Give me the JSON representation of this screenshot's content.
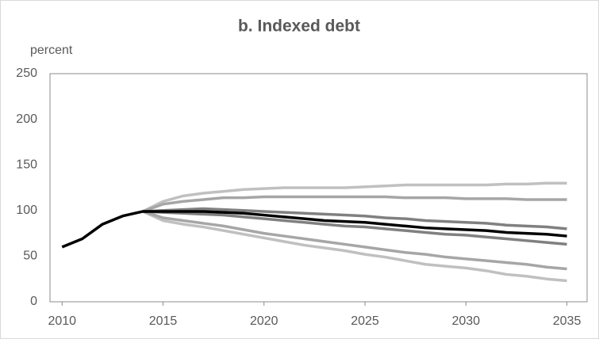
{
  "chart_data": {
    "type": "line",
    "title": "b. Indexed debt",
    "y_label": "percent",
    "x": [
      2010,
      2011,
      2012,
      2013,
      2014,
      2015,
      2016,
      2017,
      2018,
      2019,
      2020,
      2021,
      2022,
      2023,
      2024,
      2025,
      2026,
      2027,
      2028,
      2029,
      2030,
      2031,
      2032,
      2033,
      2034,
      2035
    ],
    "xlim": [
      2009.4,
      2036.0
    ],
    "xticks": [
      2010,
      2015,
      2020,
      2025,
      2030,
      2035
    ],
    "ylim": [
      0,
      250
    ],
    "yticks": [
      0,
      50,
      100,
      150,
      200,
      250
    ],
    "grid": false,
    "series": [
      {
        "color": "#c0c0c0",
        "values": [
          null,
          null,
          null,
          null,
          99,
          110,
          116,
          119,
          121,
          123,
          124,
          125,
          125,
          125,
          125,
          126,
          127,
          128,
          128,
          128,
          128,
          128,
          129,
          129,
          130,
          130
        ]
      },
      {
        "color": "#c0c0c0",
        "values": [
          null,
          null,
          null,
          null,
          99,
          89,
          85,
          82,
          78,
          74,
          70,
          66,
          62,
          59,
          56,
          52,
          49,
          45,
          41,
          39,
          37,
          34,
          30,
          28,
          25,
          23
        ]
      },
      {
        "color": "#a6a6a6",
        "values": [
          null,
          null,
          null,
          null,
          99,
          107,
          110,
          112,
          114,
          114,
          115,
          115,
          115,
          115,
          115,
          115,
          115,
          114,
          114,
          114,
          113,
          113,
          113,
          112,
          112,
          112
        ]
      },
      {
        "color": "#a6a6a6",
        "values": [
          null,
          null,
          null,
          null,
          99,
          92,
          89,
          86,
          83,
          79,
          75,
          72,
          69,
          66,
          63,
          60,
          57,
          54,
          52,
          49,
          47,
          45,
          43,
          41,
          38,
          36
        ]
      },
      {
        "color": "#808080",
        "values": [
          null,
          null,
          null,
          null,
          99,
          100,
          101,
          102,
          101,
          100,
          99,
          98,
          97,
          96,
          95,
          94,
          92,
          91,
          89,
          88,
          87,
          86,
          84,
          83,
          82,
          80
        ]
      },
      {
        "color": "#808080",
        "values": [
          null,
          null,
          null,
          null,
          99,
          98,
          97,
          96,
          95,
          93,
          91,
          89,
          87,
          85,
          83,
          82,
          80,
          78,
          76,
          74,
          73,
          71,
          69,
          67,
          65,
          63
        ]
      },
      {
        "color": "#000000",
        "values": [
          60,
          69,
          85,
          94,
          99,
          99,
          99,
          99,
          98,
          97,
          95,
          93,
          91,
          89,
          88,
          87,
          85,
          83,
          81,
          80,
          79,
          78,
          76,
          75,
          74,
          72
        ]
      }
    ]
  }
}
